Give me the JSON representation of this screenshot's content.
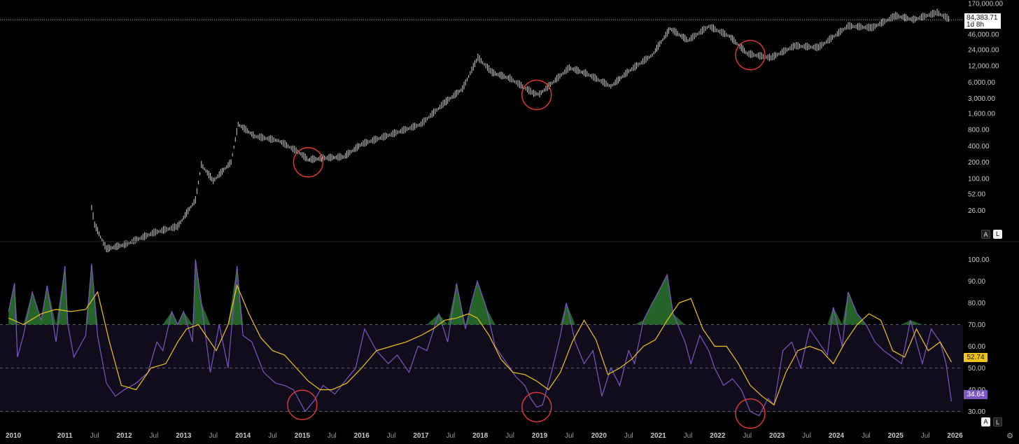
{
  "price_panel": {
    "last_price": "84,383.71",
    "countdown": "1d 8h",
    "scale_buttons": {
      "auto": "A",
      "log": "L"
    }
  },
  "rsi_panel": {
    "rsi_value": "34.64",
    "ma_value": "52.74",
    "scale_buttons": {
      "auto": "A",
      "log": "L"
    }
  },
  "colors": {
    "background": "#000000",
    "price_candles": "#d0d0d0",
    "rsi_line": "#7e57c2",
    "rsi_ma_line": "#f0c419",
    "rsi_band_fill": "#100c1c",
    "overbought_fill": "#2e7d32",
    "highlight_circle": "#e53935"
  },
  "chart_data": [
    {
      "type": "line",
      "style": "candlestick",
      "scale": "log",
      "x_unit": "year",
      "y_tick_labels": [
        "170,000.00",
        "46,000.00",
        "24,000.00",
        "12,000.00",
        "6,000.00",
        "3,000.00",
        "1,600.00",
        "800.00",
        "400.00",
        "200.00",
        "100.00",
        "52.00",
        "26.00"
      ],
      "series": [
        {
          "x": [
            2011.45,
            2011.5,
            2011.7,
            2012.0,
            2012.5,
            2012.9,
            2013.2,
            2013.3,
            2013.5,
            2013.8,
            2013.92,
            2014.2,
            2014.6,
            2014.95,
            2015.1,
            2015.4,
            2015.7,
            2016.0,
            2016.5,
            2017.0,
            2017.4,
            2017.7,
            2017.96,
            2018.2,
            2018.5,
            2018.9,
            2019.0,
            2019.5,
            2019.8,
            2020.2,
            2020.5,
            2020.9,
            2021.2,
            2021.5,
            2021.85,
            2022.2,
            2022.5,
            2022.9,
            2023.3,
            2023.7,
            2024.2,
            2024.6,
            2025.0,
            2025.3,
            2025.7,
            2025.92
          ],
          "y": [
            29,
            14,
            5,
            6,
            10,
            13,
            40,
            180,
            90,
            200,
            1000,
            600,
            500,
            300,
            220,
            240,
            250,
            430,
            650,
            1000,
            2500,
            4500,
            17000,
            9000,
            7000,
            3700,
            3600,
            11000,
            8500,
            5000,
            9500,
            19000,
            58000,
            35000,
            64000,
            42000,
            20000,
            16800,
            28000,
            26000,
            65000,
            60000,
            100000,
            85000,
            115000,
            84383.71
          ]
        }
      ],
      "annotations": [
        {
          "shape": "circle",
          "x": 2015.1,
          "y": 200
        },
        {
          "shape": "circle",
          "x": 2018.95,
          "y": 3500
        },
        {
          "shape": "circle",
          "x": 2022.55,
          "y": 19000
        }
      ]
    },
    {
      "type": "line",
      "indicator": "RSI",
      "ylim": [
        25,
        105
      ],
      "y_ticks": [
        100,
        90,
        80,
        70,
        60,
        50,
        40,
        30
      ],
      "y_tick_labels": [
        "100.00",
        "90.00",
        "80.00",
        "70.00",
        "60.00",
        "50.00",
        "40.00",
        "30.00"
      ],
      "bands": [
        70,
        50,
        30
      ],
      "x_ticks": [
        {
          "x": 2010.0,
          "label": "2010",
          "major": true
        },
        {
          "x": 2011.0,
          "label": "2011",
          "major": true
        },
        {
          "x": 2011.5,
          "label": "Jul",
          "major": false
        },
        {
          "x": 2012.0,
          "label": "2012",
          "major": true
        },
        {
          "x": 2012.5,
          "label": "Jul",
          "major": false
        },
        {
          "x": 2013.0,
          "label": "2013",
          "major": true
        },
        {
          "x": 2013.5,
          "label": "Jul",
          "major": false
        },
        {
          "x": 2014.0,
          "label": "2014",
          "major": true
        },
        {
          "x": 2014.5,
          "label": "Jul",
          "major": false
        },
        {
          "x": 2015.0,
          "label": "2015",
          "major": true
        },
        {
          "x": 2015.5,
          "label": "Jul",
          "major": false
        },
        {
          "x": 2016.0,
          "label": "2016",
          "major": true
        },
        {
          "x": 2016.5,
          "label": "Jul",
          "major": false
        },
        {
          "x": 2017.0,
          "label": "2017",
          "major": true
        },
        {
          "x": 2017.5,
          "label": "Jul",
          "major": false
        },
        {
          "x": 2018.0,
          "label": "2018",
          "major": true
        },
        {
          "x": 2018.5,
          "label": "Jul",
          "major": false
        },
        {
          "x": 2019.0,
          "label": "2019",
          "major": true
        },
        {
          "x": 2019.5,
          "label": "Jul",
          "major": false
        },
        {
          "x": 2020.0,
          "label": "2020",
          "major": true
        },
        {
          "x": 2020.5,
          "label": "Jul",
          "major": false
        },
        {
          "x": 2021.0,
          "label": "2021",
          "major": true
        },
        {
          "x": 2021.5,
          "label": "Jul",
          "major": false
        },
        {
          "x": 2022.0,
          "label": "2022",
          "major": true
        },
        {
          "x": 2022.5,
          "label": "Jul",
          "major": false
        },
        {
          "x": 2023.0,
          "label": "2023",
          "major": true
        },
        {
          "x": 2023.5,
          "label": "Jul",
          "major": false
        },
        {
          "x": 2024.0,
          "label": "2024",
          "major": true
        },
        {
          "x": 2024.5,
          "label": "Jul",
          "major": false
        },
        {
          "x": 2025.0,
          "label": "2025",
          "major": true
        },
        {
          "x": 2025.5,
          "label": "Jul",
          "major": false
        },
        {
          "x": 2026.0,
          "label": "2026",
          "major": true
        }
      ],
      "series": [
        {
          "x": [
            2010.05,
            2010.15,
            2010.2,
            2010.3,
            2010.45,
            2010.6,
            2010.7,
            2010.85,
            2011.0,
            2011.05,
            2011.15,
            2011.35,
            2011.45,
            2011.55,
            2011.7,
            2011.85,
            2012.0,
            2012.2,
            2012.4,
            2012.55,
            2012.65,
            2012.8,
            2012.9,
            2013.0,
            2013.15,
            2013.2,
            2013.3,
            2013.45,
            2013.6,
            2013.75,
            2013.9,
            2014.0,
            2014.15,
            2014.35,
            2014.55,
            2014.7,
            2014.85,
            2014.95,
            2015.05,
            2015.2,
            2015.35,
            2015.55,
            2015.75,
            2015.9,
            2016.05,
            2016.25,
            2016.45,
            2016.6,
            2016.8,
            2016.95,
            2017.1,
            2017.3,
            2017.45,
            2017.6,
            2017.75,
            2017.85,
            2017.95,
            2018.1,
            2018.25,
            2018.45,
            2018.6,
            2018.75,
            2018.85,
            2018.95,
            2019.05,
            2019.2,
            2019.35,
            2019.45,
            2019.6,
            2019.75,
            2019.9,
            2020.05,
            2020.2,
            2020.35,
            2020.5,
            2020.6,
            2020.75,
            2020.9,
            2021.0,
            2021.15,
            2021.25,
            2021.45,
            2021.55,
            2021.7,
            2021.85,
            2021.95,
            2022.1,
            2022.25,
            2022.4,
            2022.55,
            2022.7,
            2022.85,
            2022.95,
            2023.1,
            2023.25,
            2023.4,
            2023.55,
            2023.7,
            2023.85,
            2023.95,
            2024.1,
            2024.2,
            2024.35,
            2024.5,
            2024.65,
            2024.8,
            2024.95,
            2025.1,
            2025.25,
            2025.45,
            2025.6,
            2025.75,
            2025.85,
            2025.94
          ],
          "y": [
            76,
            89,
            55,
            65,
            85,
            72,
            88,
            62,
            97,
            70,
            55,
            65,
            98,
            65,
            43,
            37,
            40,
            43,
            48,
            62,
            58,
            76,
            70,
            76,
            62,
            100,
            80,
            48,
            70,
            50,
            97,
            65,
            62,
            48,
            43,
            42,
            40,
            35,
            30,
            35,
            42,
            38,
            45,
            50,
            68,
            58,
            52,
            56,
            48,
            60,
            58,
            75,
            62,
            89,
            68,
            80,
            90,
            78,
            60,
            52,
            46,
            42,
            36,
            32,
            33,
            48,
            65,
            80,
            62,
            52,
            58,
            37,
            50,
            42,
            58,
            52,
            72,
            80,
            85,
            93,
            75,
            62,
            52,
            65,
            58,
            50,
            42,
            45,
            40,
            30,
            28,
            36,
            33,
            58,
            62,
            50,
            68,
            62,
            56,
            78,
            60,
            85,
            75,
            70,
            62,
            58,
            55,
            52,
            72,
            52,
            68,
            62,
            52,
            34.64
          ]
        },
        {
          "x": [
            2010.05,
            2010.3,
            2010.6,
            2010.85,
            2011.1,
            2011.35,
            2011.55,
            2011.75,
            2011.95,
            2012.2,
            2012.45,
            2012.7,
            2012.9,
            2013.05,
            2013.25,
            2013.4,
            2013.55,
            2013.75,
            2013.9,
            2014.1,
            2014.3,
            2014.5,
            2014.7,
            2014.9,
            2015.1,
            2015.3,
            2015.5,
            2015.75,
            2016.0,
            2016.25,
            2016.5,
            2016.75,
            2017.0,
            2017.2,
            2017.4,
            2017.6,
            2017.8,
            2017.95,
            2018.15,
            2018.35,
            2018.55,
            2018.75,
            2018.95,
            2019.15,
            2019.35,
            2019.55,
            2019.75,
            2019.95,
            2020.15,
            2020.35,
            2020.55,
            2020.75,
            2020.95,
            2021.15,
            2021.35,
            2021.55,
            2021.75,
            2021.95,
            2022.15,
            2022.35,
            2022.55,
            2022.75,
            2022.95,
            2023.15,
            2023.35,
            2023.55,
            2023.75,
            2023.95,
            2024.15,
            2024.35,
            2024.55,
            2024.75,
            2024.95,
            2025.15,
            2025.35,
            2025.55,
            2025.75,
            2025.94
          ],
          "y": [
            73,
            70,
            75,
            77,
            76,
            77,
            85,
            62,
            42,
            40,
            50,
            52,
            62,
            68,
            70,
            64,
            58,
            70,
            88,
            75,
            64,
            58,
            56,
            50,
            44,
            40,
            40,
            43,
            50,
            58,
            60,
            62,
            65,
            68,
            72,
            73,
            75,
            73,
            65,
            54,
            48,
            47,
            44,
            40,
            48,
            62,
            72,
            63,
            47,
            50,
            54,
            60,
            63,
            72,
            80,
            82,
            68,
            60,
            60,
            52,
            42,
            37,
            33,
            48,
            58,
            60,
            58,
            52,
            62,
            70,
            75,
            72,
            58,
            55,
            68,
            58,
            62,
            52.74
          ]
        }
      ]
    }
  ]
}
